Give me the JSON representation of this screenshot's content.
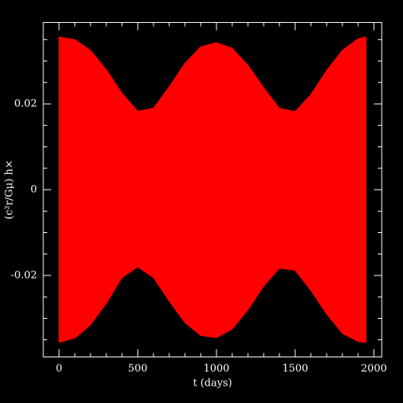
{
  "chart_data": {
    "type": "band",
    "xlabel": "t (days)",
    "ylabel": "(c²r/Gμ) h×",
    "x": [
      0,
      100,
      200,
      300,
      400,
      500,
      600,
      700,
      800,
      900,
      1000,
      1100,
      1200,
      1300,
      1400,
      1500,
      1600,
      1700,
      1800,
      1900,
      1950
    ],
    "series": [
      {
        "color": "#ff0000",
        "values": [
          0.0356,
          0.035,
          0.0325,
          0.028,
          0.0225,
          0.0183,
          0.019,
          0.024,
          0.0295,
          0.0333,
          0.0343,
          0.033,
          0.029,
          0.0238,
          0.019,
          0.0182,
          0.0222,
          0.0278,
          0.0325,
          0.0352,
          0.0356
        ]
      },
      {
        "color": "#ff0000",
        "values": [
          -0.0356,
          -0.0346,
          -0.0315,
          -0.0265,
          -0.0205,
          -0.018,
          -0.0205,
          -0.026,
          -0.031,
          -0.034,
          -0.0345,
          -0.0325,
          -0.028,
          -0.0225,
          -0.0183,
          -0.0188,
          -0.0235,
          -0.029,
          -0.0335,
          -0.0354,
          -0.0356
        ]
      }
    ],
    "xlim": [
      -100,
      2050
    ],
    "ylim": [
      -0.039,
      0.039
    ],
    "xticks": [
      0,
      500,
      1000,
      1500,
      2000
    ],
    "yticks": [
      -0.02,
      0,
      0.02
    ],
    "xminor_ticks": [
      100,
      200,
      300,
      400,
      600,
      700,
      800,
      900,
      1100,
      1200,
      1300,
      1400,
      1600,
      1700,
      1800,
      1900
    ],
    "yminor_ticks": [
      -0.035,
      -0.03,
      -0.025,
      -0.015,
      -0.01,
      -0.005,
      0.005,
      0.01,
      0.015,
      0.025,
      0.03,
      0.035
    ]
  }
}
